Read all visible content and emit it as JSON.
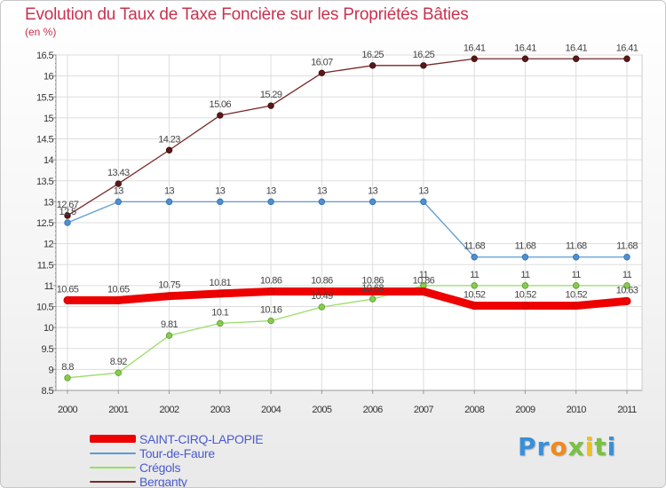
{
  "chart_data": {
    "type": "line",
    "title": "Evolution du Taux de Taxe Foncière sur les Propriétés Bâties",
    "ylabel": "(en %)",
    "xlabel": "",
    "ylim": [
      8.5,
      16.5
    ],
    "yticks": [
      8.5,
      9,
      9.5,
      10,
      10.5,
      11,
      11.5,
      12,
      12.5,
      13,
      13.5,
      14,
      14.5,
      15,
      15.5,
      16,
      16.5
    ],
    "ytick_labels": [
      "8.5",
      "9",
      "9.5",
      "10",
      "10.5",
      "11",
      "11.5",
      "12",
      "12.5",
      "13",
      "13.5",
      "14",
      "14.5",
      "15",
      "15.5",
      "16",
      "16.5"
    ],
    "categories": [
      "2000",
      "2001",
      "2002",
      "2003",
      "2004",
      "2005",
      "2006",
      "2007",
      "2008",
      "2009",
      "2010",
      "2011"
    ],
    "grid": true,
    "legend_position": "bottom-left",
    "series": [
      {
        "name": "SAINT-CIRQ-LAPOPIE",
        "color": "#ee0000",
        "values": [
          10.65,
          10.65,
          10.75,
          10.81,
          10.86,
          10.86,
          10.86,
          10.86,
          10.52,
          10.52,
          10.52,
          10.63
        ],
        "labels": [
          "10.65",
          "10.65",
          "10.75",
          "10.81",
          "10.86",
          "10.86",
          "10.86",
          "10.86",
          "10.52",
          "10.52",
          "10.52",
          "10.63"
        ]
      },
      {
        "name": "Tour-de-Faure",
        "color": "#5b9bd5",
        "values": [
          12.5,
          13,
          13,
          13,
          13,
          13,
          13,
          13,
          11.68,
          11.68,
          11.68,
          11.68
        ],
        "labels": [
          "12.5",
          "13",
          "13",
          "13",
          "13",
          "13",
          "13",
          "13",
          "11.68",
          "11.68",
          "11.68",
          "11.68"
        ]
      },
      {
        "name": "Crégols",
        "color": "#99dd66",
        "values": [
          8.8,
          8.92,
          9.81,
          10.1,
          10.16,
          10.49,
          10.68,
          11,
          11,
          11,
          11,
          11
        ],
        "labels": [
          "8.8",
          "8.92",
          "9.81",
          "10.1",
          "10.16",
          "10.49",
          "10.68",
          "11",
          "11",
          "11",
          "11",
          "11"
        ]
      },
      {
        "name": "Berganty",
        "color": "#7a2828",
        "values": [
          12.67,
          13.43,
          14.23,
          15.06,
          15.29,
          16.07,
          16.25,
          16.25,
          16.41,
          16.41,
          16.41,
          16.41
        ],
        "labels": [
          "12.67",
          "13.43",
          "14.23",
          "15.06",
          "15.29",
          "16.07",
          "16.25",
          "16.25",
          "16.41",
          "16.41",
          "16.41",
          "16.41"
        ]
      }
    ]
  },
  "legend": {
    "items": [
      "SAINT-CIRQ-LAPOPIE",
      "Tour-de-Faure",
      "Crégols",
      "Berganty"
    ]
  },
  "logo": {
    "text": "Proxiti",
    "letters": [
      "P",
      "r",
      "o",
      "x",
      "i",
      "t",
      "i"
    ],
    "colors": [
      "#3a8fd8",
      "#3a8fd8",
      "#f08a1c",
      "#7ac143",
      "#f0c020",
      "#7ac143",
      "#3a8fd8"
    ]
  }
}
